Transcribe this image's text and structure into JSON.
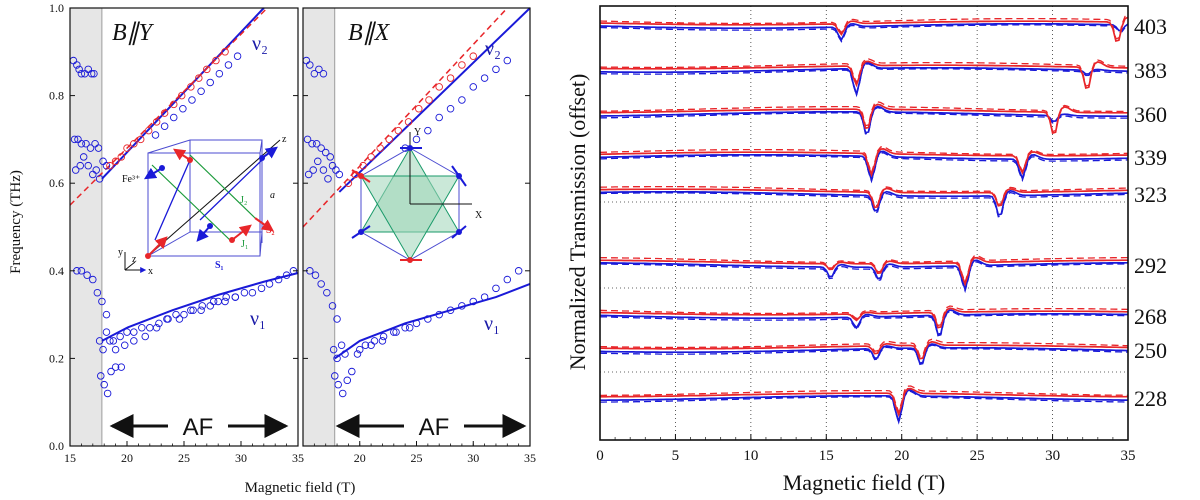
{
  "left_figure": {
    "y_axis_label": "Frequency (THz)",
    "x_axis_label": "Magnetic field (T)",
    "y_ticks": [
      "0.0",
      "0.2",
      "0.4",
      "0.6",
      "0.8",
      "1.0"
    ],
    "y_values": [
      0.0,
      0.2,
      0.4,
      0.6,
      0.8,
      1.0
    ],
    "af_label": "AF",
    "panels": [
      {
        "title": "B∥Y",
        "x_ticks": [
          "15",
          "20",
          "25",
          "30",
          "35"
        ],
        "nu2_label": "ν₂",
        "nu1_label": "ν₁",
        "inset_labels": [
          "Fe³⁺",
          "J₂",
          "J₁",
          "a",
          "S₁",
          "S₂",
          "x",
          "y",
          "z",
          "z"
        ]
      },
      {
        "title": "B∥X",
        "x_ticks": [
          "20",
          "25",
          "30",
          "35"
        ],
        "nu2_label": "ν₂",
        "nu1_label": "ν₁",
        "inset_labels": [
          "Y",
          "X"
        ]
      }
    ]
  },
  "right_figure": {
    "y_axis_label": "Normalized Transmission (offset)",
    "x_axis_label": "Magnetic field (T)",
    "x_ticks": [
      "0",
      "5",
      "10",
      "15",
      "20",
      "25",
      "30",
      "35"
    ],
    "offset_labels": [
      "403",
      "383",
      "360",
      "339",
      "323",
      "292",
      "268",
      "250",
      "228"
    ]
  },
  "colors": {
    "red": "#e8262a",
    "blue": "#1a1ad8",
    "axis": "#111111",
    "shade": "#e6e6e6",
    "inset_fill": "#9ed6b8"
  },
  "chart_data": [
    {
      "type": "scatter",
      "title": "B∥Y",
      "xlabel": "Magnetic field (T)",
      "ylabel": "Frequency (THz)",
      "xlim": [
        15,
        35
      ],
      "ylim": [
        0,
        1.0
      ],
      "shaded_region": [
        15,
        17.8
      ],
      "series": [
        {
          "name": "ν₂",
          "type": "line",
          "color": "#1a1ad8",
          "x": [
            17.8,
            32.0
          ],
          "y": [
            0.61,
            1.0
          ]
        },
        {
          "name": "",
          "type": "dashed-line",
          "color": "#e8262a",
          "x": [
            15,
            32.3
          ],
          "y": [
            0.55,
            1.0
          ]
        },
        {
          "name": "ν₁",
          "type": "line",
          "color": "#1a1ad8",
          "x": [
            17.8,
            20,
            24,
            28,
            32,
            35
          ],
          "y": [
            0.24,
            0.27,
            0.31,
            0.345,
            0.375,
            0.395
          ]
        },
        {
          "name": "",
          "type": "points",
          "color": "#1a1ad8",
          "x": [
            15.3,
            15.6,
            15.8,
            16.0,
            16.3,
            16.6,
            16.9,
            17.1,
            15.4,
            15.7,
            16.0,
            16.4,
            16.8,
            17.2,
            17.5,
            15.5,
            15.9,
            16.2,
            16.6,
            17.0,
            17.3,
            17.6,
            17.9,
            18.2,
            15.6,
            16.0,
            16.5,
            17.0,
            17.4,
            17.8,
            18.2,
            17.6,
            17.9,
            18.2,
            18.5,
            17.7,
            18.0,
            18.3,
            18.6,
            19.0,
            19.5,
            18.8,
            19.4,
            20.0,
            20.6,
            21.3,
            22.0,
            22.8,
            23.5,
            24.3,
            25.0,
            25.8,
            26.5,
            27.3,
            28.0,
            28.7,
            29.5,
            30.3,
            31.0,
            31.8,
            32.5,
            33.3,
            34.0,
            34.6,
            19.0,
            19.8,
            20.6,
            21.6,
            22.6,
            23.6,
            24.6,
            25.6,
            26.6,
            27.6,
            28.6,
            29.5
          ],
          "y": [
            0.88,
            0.87,
            0.86,
            0.85,
            0.85,
            0.86,
            0.85,
            0.85,
            0.7,
            0.7,
            0.69,
            0.69,
            0.68,
            0.69,
            0.68,
            0.63,
            0.64,
            0.66,
            0.64,
            0.62,
            0.63,
            0.61,
            0.65,
            0.64,
            0.4,
            0.4,
            0.39,
            0.38,
            0.35,
            0.33,
            0.3,
            0.24,
            0.22,
            0.26,
            0.24,
            0.16,
            0.14,
            0.12,
            0.17,
            0.18,
            0.18,
            0.24,
            0.25,
            0.26,
            0.26,
            0.27,
            0.27,
            0.28,
            0.29,
            0.3,
            0.3,
            0.31,
            0.31,
            0.32,
            0.33,
            0.34,
            0.34,
            0.35,
            0.35,
            0.36,
            0.37,
            0.38,
            0.39,
            0.4,
            0.22,
            0.23,
            0.24,
            0.25,
            0.27,
            0.29,
            0.29,
            0.31,
            0.32,
            0.33,
            0.33,
            0.34
          ]
        },
        {
          "name": "",
          "type": "points",
          "color": "#e8262a",
          "x": [
            18.5,
            19.0,
            19.5,
            20.0,
            20.6,
            21.2,
            21.9,
            22.6,
            23.3,
            24.1,
            24.8,
            25.6,
            26.3,
            27.0,
            27.8,
            28.6
          ],
          "y": [
            0.64,
            0.65,
            0.66,
            0.68,
            0.69,
            0.7,
            0.72,
            0.74,
            0.76,
            0.78,
            0.8,
            0.82,
            0.84,
            0.86,
            0.88,
            0.9
          ]
        },
        {
          "name": "",
          "type": "points",
          "color": "#1a1ad8",
          "x": [
            22.5,
            23.3,
            24.1,
            24.9,
            25.7,
            26.5,
            27.3,
            28.1,
            28.9,
            29.7
          ],
          "y": [
            0.71,
            0.73,
            0.75,
            0.77,
            0.79,
            0.81,
            0.83,
            0.85,
            0.87,
            0.89
          ]
        }
      ]
    },
    {
      "type": "scatter",
      "title": "B∥X",
      "xlabel": "Magnetic field (T)",
      "ylabel": "Frequency (THz)",
      "xlim": [
        15,
        35
      ],
      "ylim": [
        0,
        1.0
      ],
      "shaded_region": [
        15,
        17.8
      ],
      "series": [
        {
          "name": "ν₂",
          "type": "line",
          "color": "#1a1ad8",
          "x": [
            18.2,
            35
          ],
          "y": [
            0.58,
            1.0
          ]
        },
        {
          "name": "",
          "type": "dashed-line",
          "color": "#e8262a",
          "x": [
            15,
            33.0
          ],
          "y": [
            0.5,
            1.0
          ]
        },
        {
          "name": "ν₁",
          "type": "line",
          "color": "#1a1ad8",
          "x": [
            17.8,
            20,
            24,
            28,
            32,
            35
          ],
          "y": [
            0.2,
            0.24,
            0.28,
            0.31,
            0.34,
            0.37
          ]
        },
        {
          "name": "",
          "type": "points",
          "color": "#1a1ad8",
          "x": [
            15.3,
            15.6,
            16.0,
            16.4,
            16.8,
            15.4,
            15.8,
            16.2,
            16.6,
            17.0,
            17.4,
            15.5,
            15.9,
            16.3,
            16.8,
            17.2,
            17.6,
            17.9,
            18.2,
            15.6,
            16.1,
            16.6,
            17.1,
            17.6,
            18.0,
            17.7,
            18.0,
            18.4,
            18.7,
            17.8,
            18.1,
            18.5,
            18.9,
            19.3,
            19.8,
            20.5,
            21.3,
            22.1,
            23.0,
            24.0,
            25.0,
            26.0,
            27.0,
            28.0,
            29.0,
            30.0,
            31.0,
            32.0,
            33.0,
            34.0,
            20.0,
            21.0,
            22.0,
            23.2,
            24.4
          ],
          "y": [
            0.88,
            0.87,
            0.85,
            0.86,
            0.85,
            0.7,
            0.69,
            0.69,
            0.68,
            0.67,
            0.66,
            0.62,
            0.63,
            0.65,
            0.63,
            0.61,
            0.64,
            0.63,
            0.62,
            0.4,
            0.39,
            0.37,
            0.35,
            0.32,
            0.29,
            0.22,
            0.2,
            0.23,
            0.21,
            0.16,
            0.14,
            0.12,
            0.15,
            0.17,
            0.21,
            0.23,
            0.24,
            0.25,
            0.26,
            0.27,
            0.28,
            0.29,
            0.3,
            0.31,
            0.32,
            0.33,
            0.34,
            0.36,
            0.38,
            0.4,
            0.22,
            0.23,
            0.24,
            0.26,
            0.27
          ]
        },
        {
          "name": "",
          "type": "points",
          "color": "#e8262a",
          "x": [
            19.0,
            19.6,
            20.3,
            21.0,
            21.8,
            22.6,
            23.4,
            24.3,
            25.2,
            26.1,
            27.0,
            28.0,
            29.0,
            30.0
          ],
          "y": [
            0.6,
            0.62,
            0.64,
            0.66,
            0.68,
            0.7,
            0.72,
            0.74,
            0.77,
            0.79,
            0.82,
            0.84,
            0.87,
            0.89
          ]
        },
        {
          "name": "",
          "type": "points",
          "color": "#1a1ad8",
          "x": [
            24.0,
            25.0,
            26.0,
            27.0,
            28.0,
            29.0,
            30.0,
            31.0,
            32.0,
            33.0
          ],
          "y": [
            0.68,
            0.7,
            0.72,
            0.75,
            0.77,
            0.79,
            0.82,
            0.84,
            0.86,
            0.88
          ]
        }
      ]
    },
    {
      "type": "line",
      "title": "",
      "xlabel": "Magnetic field (T)",
      "ylabel": "Normalized Transmission (offset)",
      "xlim": [
        0,
        35
      ],
      "grid": "dotted vertical lines every 5 T",
      "categories": [
        "403",
        "383",
        "360",
        "339",
        "323",
        "292",
        "268",
        "250",
        "228"
      ],
      "series": [
        {
          "name": "403",
          "blue_dips": [
            [
              16.0,
              0.6
            ],
            [
              34.5,
              0.3
            ]
          ],
          "red_dips": [
            [
              16.0,
              0.5
            ],
            [
              34.3,
              1.0
            ]
          ]
        },
        {
          "name": "383",
          "blue_dips": [
            [
              17.0,
              1.2
            ],
            [
              32.3,
              0.2
            ]
          ],
          "red_dips": [
            [
              17.0,
              0.9
            ],
            [
              32.3,
              1.1
            ]
          ]
        },
        {
          "name": "360",
          "blue_dips": [
            [
              17.7,
              1.1
            ],
            [
              30.1,
              0.3
            ]
          ],
          "red_dips": [
            [
              17.7,
              1.0
            ],
            [
              30.1,
              1.1
            ]
          ]
        },
        {
          "name": "339",
          "blue_dips": [
            [
              18.0,
              1.1
            ],
            [
              28.0,
              0.9
            ]
          ],
          "red_dips": [
            [
              18.0,
              1.0
            ],
            [
              28.0,
              0.8
            ]
          ]
        },
        {
          "name": "323",
          "blue_dips": [
            [
              18.3,
              0.8
            ],
            [
              26.5,
              1.0
            ]
          ],
          "red_dips": [
            [
              18.3,
              0.8
            ],
            [
              26.5,
              0.7
            ]
          ]
        },
        {
          "name": "292",
          "blue_dips": [
            [
              15.3,
              0.5
            ],
            [
              18.5,
              0.6
            ],
            [
              24.2,
              1.1
            ]
          ],
          "red_dips": [
            [
              15.3,
              0.3
            ],
            [
              18.5,
              0.5
            ],
            [
              24.2,
              1.0
            ]
          ]
        },
        {
          "name": "268",
          "blue_dips": [
            [
              17.0,
              0.5
            ],
            [
              22.5,
              1.0
            ]
          ],
          "red_dips": [
            [
              17.0,
              0.3
            ],
            [
              22.5,
              0.8
            ]
          ]
        },
        {
          "name": "250",
          "blue_dips": [
            [
              18.3,
              0.5
            ],
            [
              21.3,
              0.8
            ]
          ],
          "red_dips": [
            [
              18.3,
              0.4
            ],
            [
              21.3,
              0.7
            ]
          ]
        },
        {
          "name": "228",
          "blue_dips": [
            [
              19.8,
              1.2
            ]
          ],
          "red_dips": [
            [
              19.8,
              1.0
            ]
          ]
        }
      ]
    }
  ]
}
